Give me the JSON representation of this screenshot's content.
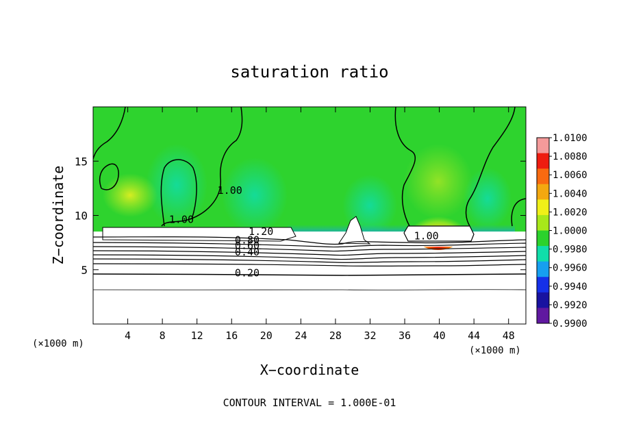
{
  "chart_data": {
    "type": "heatmap",
    "title": "saturation ratio",
    "xlabel": "X−coordinate",
    "ylabel": "Z−coordinate",
    "x_unit_left": "(×1000 m)",
    "x_unit_right": "(×1000 m)",
    "xlim": [
      0,
      50
    ],
    "ylim": [
      0,
      20
    ],
    "xticks": [
      4,
      8,
      12,
      16,
      20,
      24,
      28,
      32,
      36,
      40,
      44,
      48
    ],
    "xtick_labels": [
      "4",
      "8",
      "12",
      "16",
      "20",
      "24",
      "28",
      "32",
      "36",
      "40",
      "44",
      "48"
    ],
    "yticks": [
      5,
      10,
      15
    ],
    "ytick_labels": [
      "5",
      "10",
      "15"
    ],
    "colorbar": {
      "labels": [
        "1.0100",
        "1.0080",
        "1.0060",
        "1.0040",
        "1.0020",
        "1.0000",
        "0.9980",
        "0.9960",
        "0.9940",
        "0.9920",
        "0.9900"
      ],
      "colors": [
        "#f49a9a",
        "#ee1c10",
        "#f86a10",
        "#f3a810",
        "#f0f018",
        "#a8e81a",
        "#2cd22c",
        "#10ddaa",
        "#169ff0",
        "#1530e8",
        "#1812a0",
        "#6018a0"
      ]
    },
    "contour_labels": [
      {
        "text": "1.00",
        "x": 15.8,
        "y": 12.0
      },
      {
        "text": "1.00",
        "x": 10.2,
        "y": 9.3
      },
      {
        "text": "1.20",
        "x": 19.4,
        "y": 8.2
      },
      {
        "text": "1.00",
        "x": 38.5,
        "y": 7.8
      },
      {
        "text": "0.80",
        "x": 17.8,
        "y": 7.4
      },
      {
        "text": "0.60",
        "x": 17.8,
        "y": 6.9
      },
      {
        "text": "0.40",
        "x": 17.8,
        "y": 6.3
      },
      {
        "text": "0.20",
        "x": 17.8,
        "y": 4.4
      }
    ],
    "grid": false,
    "legend_position": "right"
  },
  "footer": {
    "contour_interval": "CONTOUR INTERVAL =  1.000E-01"
  }
}
